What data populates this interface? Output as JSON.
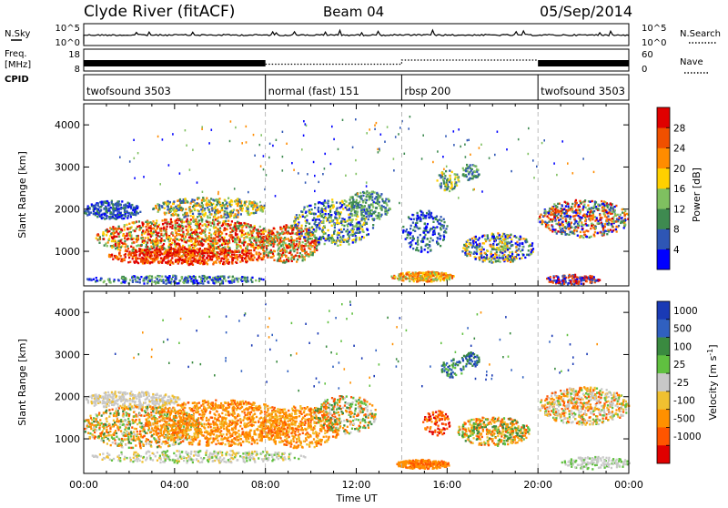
{
  "header": {
    "station": "Clyde River (fitACF)",
    "beam": "Beam 04",
    "date": "05/Sep/2014"
  },
  "panels": {
    "nsky": {
      "left_label": "N.Sky",
      "right_label": "N.Search",
      "left_ticks": [
        "10^5",
        "10^0"
      ],
      "right_ticks": [
        "10^5",
        "10^0"
      ]
    },
    "freq": {
      "left_label_1": "Freq.",
      "left_label_2": "[MHz]",
      "right_label": "Nave",
      "left_ticks": [
        "18",
        "8"
      ],
      "right_ticks": [
        "60",
        "0"
      ]
    },
    "cpid": {
      "label": "CPID",
      "segments": [
        {
          "label": "twofsound 3503",
          "start": 0,
          "end": 8
        },
        {
          "label": "normal (fast) 151",
          "start": 8,
          "end": 14
        },
        {
          "label": "rbsp 200",
          "start": 14,
          "end": 20
        },
        {
          "label": "twofsound 3503",
          "start": 20,
          "end": 24
        }
      ]
    }
  },
  "chart_data": [
    {
      "type": "heatmap",
      "title": "",
      "ylabel": "Slant Range [km]",
      "xlabel": "",
      "x_range": [
        0,
        24
      ],
      "y_range": [
        180,
        4500
      ],
      "y_ticks": [
        "1000",
        "2000",
        "3000",
        "4000"
      ],
      "colorbar": {
        "label": "Power [dB]",
        "ticks": [
          "4",
          "8",
          "12",
          "16",
          "20",
          "24",
          "28"
        ],
        "colors": [
          "#0000ff",
          "#2e56b5",
          "#3e8a50",
          "#7fc060",
          "#ffd000",
          "#ff8c00",
          "#f05000",
          "#e00000"
        ]
      }
    },
    {
      "type": "heatmap",
      "title": "",
      "ylabel": "Slant Range [km]",
      "xlabel": "Time UT",
      "x_range": [
        0,
        24
      ],
      "y_range": [
        180,
        4500
      ],
      "y_ticks": [
        "1000",
        "2000",
        "3000",
        "4000"
      ],
      "x_ticks": [
        "00:00",
        "04:00",
        "08:00",
        "12:00",
        "16:00",
        "20:00",
        "00:00"
      ],
      "colorbar": {
        "label": "Velocity [m s",
        "label_sup": "-1",
        "label_end": "]",
        "ticks": [
          "1000",
          "500",
          "100",
          "25",
          "-25",
          "-100",
          "-500",
          "-1000"
        ],
        "colors": [
          "#1a3ab5",
          "#3060c0",
          "#3a8a40",
          "#60c040",
          "#c8c8c8",
          "#f0c030",
          "#ff9000",
          "#ff5500",
          "#e00000"
        ]
      }
    }
  ]
}
